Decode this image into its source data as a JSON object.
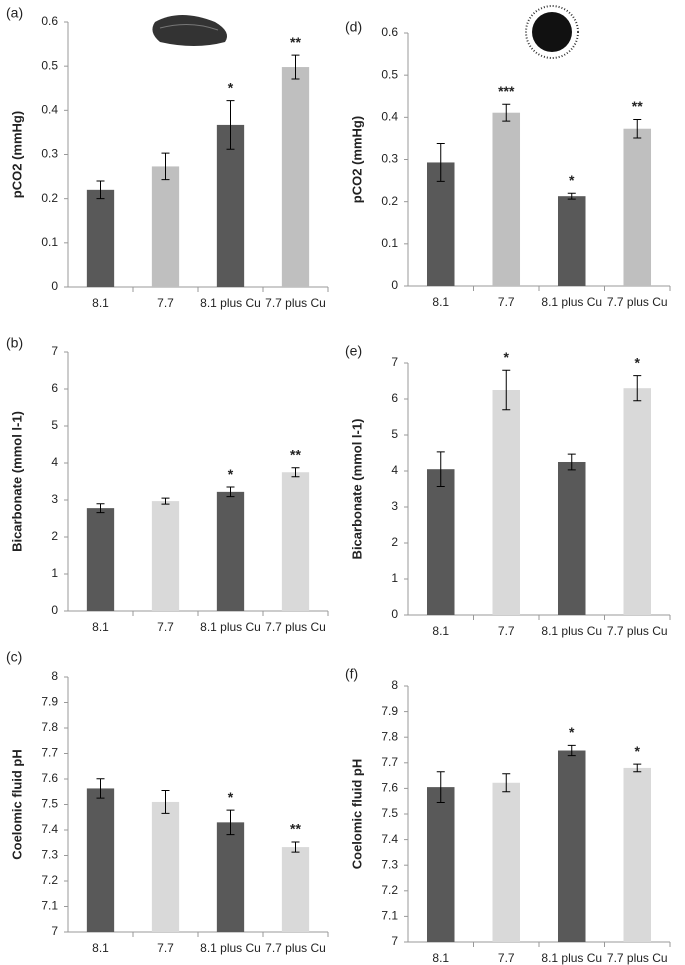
{
  "chart_data": [
    {
      "type": "bar",
      "panel": "(a)",
      "y_label": "pCO2 (mmHg)",
      "categories": [
        "8.1",
        "7.7",
        "8.1 plus Cu",
        "7.7 plus Cu"
      ],
      "values": [
        0.22,
        0.273,
        0.367,
        0.498
      ],
      "errors": [
        0.02,
        0.03,
        0.055,
        0.027
      ],
      "annotations": [
        null,
        null,
        "*",
        "**"
      ],
      "colors": [
        "#595959",
        "#bfbfbf",
        "#595959",
        "#bfbfbf"
      ],
      "ylim": [
        0,
        0.6
      ],
      "yticks": [
        0,
        0.1,
        0.2,
        0.3,
        0.4,
        0.5,
        0.6
      ]
    },
    {
      "type": "bar",
      "panel": "(b)",
      "y_label": "Bicarbonate (mmol l-1)",
      "categories": [
        "8.1",
        "7.7",
        "8.1 plus Cu",
        "7.7 plus Cu"
      ],
      "values": [
        2.78,
        2.97,
        3.22,
        3.75
      ],
      "errors": [
        0.12,
        0.08,
        0.13,
        0.12
      ],
      "annotations": [
        null,
        null,
        "*",
        "**"
      ],
      "colors": [
        "#595959",
        "#d9d9d9",
        "#595959",
        "#d9d9d9"
      ],
      "ylim": [
        0,
        7
      ],
      "yticks": [
        0,
        1,
        2,
        3,
        4,
        5,
        6,
        7
      ]
    },
    {
      "type": "bar",
      "panel": "(c)",
      "y_label": "Coelomic fluid pH",
      "categories": [
        "8.1",
        "7.7",
        "8.1 plus Cu",
        "7.7 plus Cu"
      ],
      "values": [
        7.563,
        7.51,
        7.43,
        7.333
      ],
      "errors": [
        0.038,
        0.045,
        0.048,
        0.02
      ],
      "annotations": [
        null,
        null,
        "*",
        "**"
      ],
      "colors": [
        "#595959",
        "#d9d9d9",
        "#595959",
        "#d9d9d9"
      ],
      "ylim": [
        7,
        8
      ],
      "yticks": [
        7,
        7.1,
        7.2,
        7.3,
        7.4,
        7.5,
        7.6,
        7.7,
        7.8,
        7.9,
        8
      ]
    },
    {
      "type": "bar",
      "panel": "(d)",
      "y_label": "pCO2 (mmHg)",
      "categories": [
        "8.1",
        "7.7",
        "8.1 plus Cu",
        "7.7 plus Cu"
      ],
      "values": [
        0.293,
        0.411,
        0.213,
        0.373
      ],
      "errors": [
        0.045,
        0.02,
        0.007,
        0.022
      ],
      "annotations": [
        null,
        "***",
        "*",
        "**"
      ],
      "colors": [
        "#595959",
        "#bfbfbf",
        "#595959",
        "#bfbfbf"
      ],
      "ylim": [
        0,
        0.6
      ],
      "yticks": [
        0,
        0.1,
        0.2,
        0.3,
        0.4,
        0.5,
        0.6
      ]
    },
    {
      "type": "bar",
      "panel": "(e)",
      "y_label": "Bicarbonate (mmol l-1)",
      "categories": [
        "8.1",
        "7.7",
        "8.1 plus Cu",
        "7.7 plus Cu"
      ],
      "values": [
        4.05,
        6.25,
        4.25,
        6.3
      ],
      "errors": [
        0.48,
        0.55,
        0.22,
        0.35
      ],
      "annotations": [
        null,
        "*",
        null,
        "*"
      ],
      "colors": [
        "#595959",
        "#d9d9d9",
        "#595959",
        "#d9d9d9"
      ],
      "ylim": [
        0,
        7
      ],
      "yticks": [
        0,
        1,
        2,
        3,
        4,
        5,
        6,
        7
      ]
    },
    {
      "type": "bar",
      "panel": "(f)",
      "y_label": "Coelomic fluid pH",
      "categories": [
        "8.1",
        "7.7",
        "8.1 plus Cu",
        "7.7 plus Cu"
      ],
      "values": [
        7.605,
        7.622,
        7.748,
        7.68
      ],
      "errors": [
        0.06,
        0.035,
        0.02,
        0.015
      ],
      "annotations": [
        null,
        null,
        "*",
        "*"
      ],
      "colors": [
        "#595959",
        "#d9d9d9",
        "#595959",
        "#d9d9d9"
      ],
      "ylim": [
        7,
        8
      ],
      "yticks": [
        7,
        7.1,
        7.2,
        7.3,
        7.4,
        7.5,
        7.6,
        7.7,
        7.8,
        7.9,
        8
      ]
    }
  ]
}
